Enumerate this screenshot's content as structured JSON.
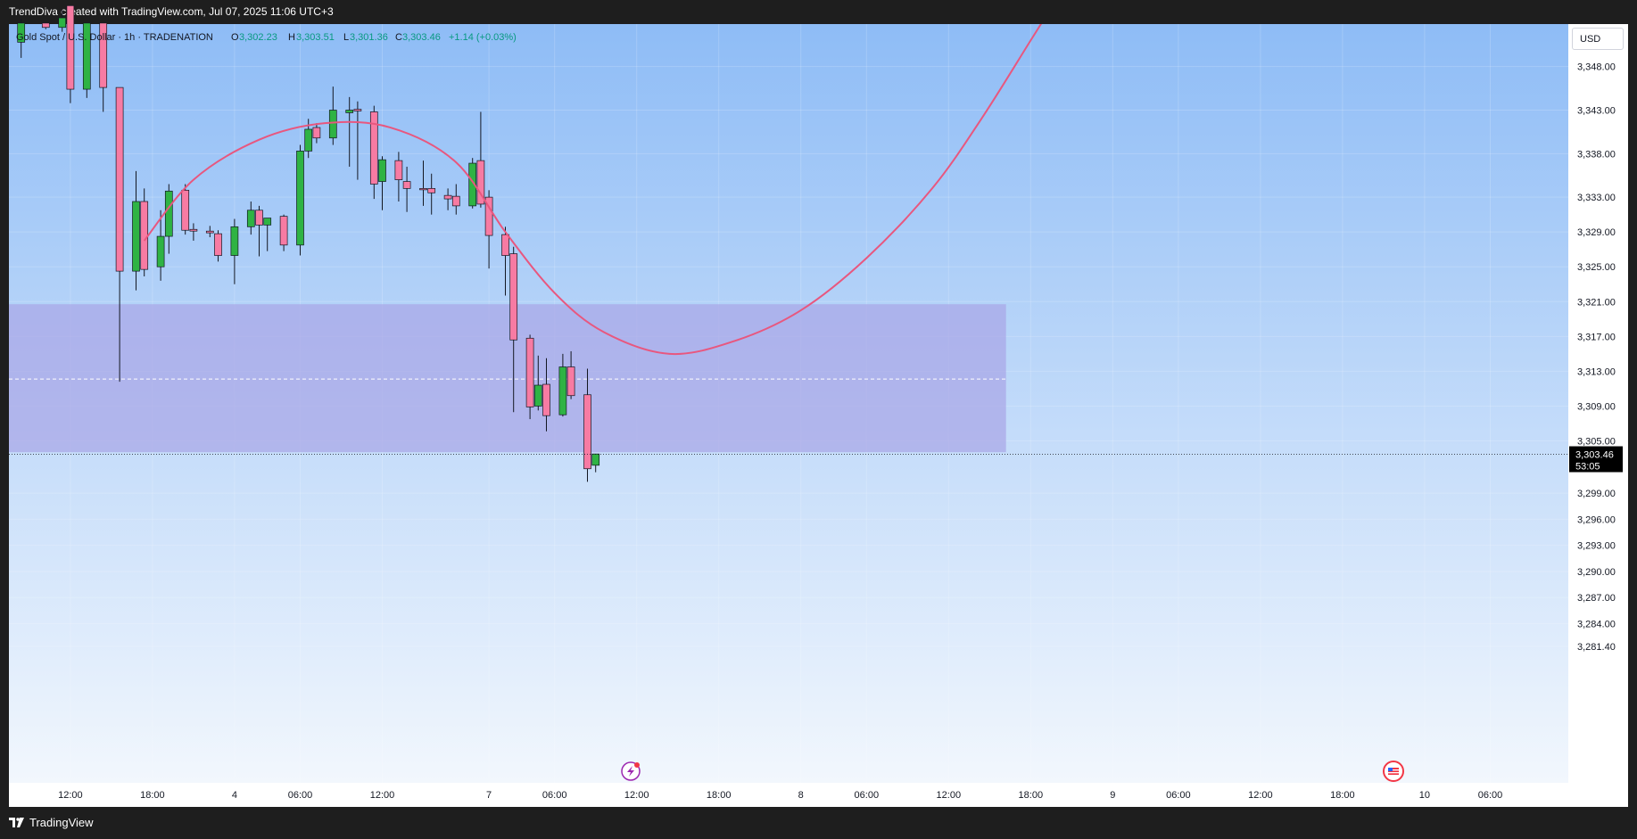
{
  "header": {
    "credit": "TrendDiva created with TradingView.com, Jul 07, 2025 11:06 UTC+3"
  },
  "footer": {
    "brand": "TradingView"
  },
  "currency_button": "USD",
  "legend": {
    "symbol": "Gold Spot / U.S. Dollar · 1h · TRADENATION",
    "o_label": "O",
    "o_value": "3,302.23",
    "h_label": "H",
    "h_value": "3,303.51",
    "l_label": "L",
    "l_value": "3,301.36",
    "c_label": "C",
    "c_value": "3,303.46",
    "change": "+1.14 (+0.03%)"
  },
  "price_tag": {
    "price": "3,303.46",
    "countdown": "53:05"
  },
  "colors": {
    "up": "#2fb344",
    "down": "#f77ba3",
    "curve": "#e8577f",
    "zone": "#a9a6e6",
    "bg_top": "#8ebcf6",
    "bg_bottom": "#f2f7fd"
  },
  "icons": {
    "bolt": "lightning-bolt-icon",
    "flag": "us-flag-icon",
    "logo": "tradingview-logo-icon"
  },
  "chart_data": {
    "type": "candlestick",
    "title": "",
    "interval": "1h",
    "y_axis": {
      "ylim": [
        3279.0,
        3355.0
      ],
      "ticks": [
        3348,
        3343,
        3338,
        3333,
        3329,
        3325,
        3321,
        3317,
        3313,
        3309,
        3305,
        3299,
        3296,
        3293,
        3290,
        3287,
        3284,
        3281.4
      ],
      "tick_labels": [
        "3,348.00",
        "3,343.00",
        "3,338.00",
        "3,333.00",
        "3,329.00",
        "3,325.00",
        "3,321.00",
        "3,317.00",
        "3,313.00",
        "3,309.00",
        "3,305.00",
        "3,299.00",
        "3,296.00",
        "3,293.00",
        "3,290.00",
        "3,287.00",
        "3,284.00",
        "3,281.40"
      ]
    },
    "x_axis": {
      "bars_visible": 190,
      "ticks": [
        {
          "bar": 7,
          "label": "12:00"
        },
        {
          "bar": 17,
          "label": "18:00"
        },
        {
          "bar": 27,
          "label": "4"
        },
        {
          "bar": 35,
          "label": "06:00"
        },
        {
          "bar": 45,
          "label": "12:00"
        },
        {
          "bar": 58,
          "label": "7"
        },
        {
          "bar": 66,
          "label": "06:00"
        },
        {
          "bar": 76,
          "label": "12:00"
        },
        {
          "bar": 86,
          "label": "18:00"
        },
        {
          "bar": 96,
          "label": "8"
        },
        {
          "bar": 104,
          "label": "06:00"
        },
        {
          "bar": 114,
          "label": "12:00"
        },
        {
          "bar": 124,
          "label": "18:00"
        },
        {
          "bar": 134,
          "label": "9"
        },
        {
          "bar": 142,
          "label": "06:00"
        },
        {
          "bar": 152,
          "label": "12:00"
        },
        {
          "bar": 162,
          "label": "18:00"
        },
        {
          "bar": 172,
          "label": "10"
        },
        {
          "bar": 180,
          "label": "06:00"
        }
      ]
    },
    "candles": [
      {
        "bar": 1,
        "o": 3350.8,
        "h": 3353.5,
        "l": 3349.0,
        "c": 3353.0
      },
      {
        "bar": 4,
        "o": 3353.0,
        "h": 3353.0,
        "l": 3352.3,
        "c": 3352.5
      },
      {
        "bar": 6,
        "o": 3352.5,
        "h": 3354.5,
        "l": 3352.0,
        "c": 3353.6
      },
      {
        "bar": 7,
        "o": 3355.0,
        "h": 3355.0,
        "l": 3343.8,
        "c": 3345.4
      },
      {
        "bar": 9,
        "o": 3345.4,
        "h": 3353.0,
        "l": 3344.4,
        "c": 3353.0
      },
      {
        "bar": 11,
        "o": 3353.0,
        "h": 3353.0,
        "l": 3342.8,
        "c": 3345.6
      },
      {
        "bar": 13,
        "o": 3345.6,
        "h": 3345.6,
        "l": 3311.8,
        "c": 3324.5
      },
      {
        "bar": 15,
        "o": 3324.5,
        "h": 3336.0,
        "l": 3322.3,
        "c": 3332.5
      },
      {
        "bar": 16,
        "o": 3332.5,
        "h": 3334.0,
        "l": 3323.9,
        "c": 3324.7
      },
      {
        "bar": 18,
        "o": 3325.0,
        "h": 3331.5,
        "l": 3323.4,
        "c": 3328.5
      },
      {
        "bar": 19,
        "o": 3328.5,
        "h": 3334.5,
        "l": 3326.5,
        "c": 3333.7
      },
      {
        "bar": 21,
        "o": 3333.8,
        "h": 3334.5,
        "l": 3328.7,
        "c": 3329.2
      },
      {
        "bar": 22,
        "o": 3329.3,
        "h": 3330.0,
        "l": 3328.0,
        "c": 3329.1
      },
      {
        "bar": 24,
        "o": 3329.1,
        "h": 3329.7,
        "l": 3328.4,
        "c": 3328.9
      },
      {
        "bar": 25,
        "o": 3328.8,
        "h": 3329.2,
        "l": 3325.6,
        "c": 3326.3
      },
      {
        "bar": 27,
        "o": 3326.3,
        "h": 3330.5,
        "l": 3323.0,
        "c": 3329.6
      },
      {
        "bar": 29,
        "o": 3329.6,
        "h": 3332.5,
        "l": 3328.7,
        "c": 3331.5
      },
      {
        "bar": 30,
        "o": 3331.5,
        "h": 3332.0,
        "l": 3326.2,
        "c": 3329.8
      },
      {
        "bar": 31,
        "o": 3329.8,
        "h": 3330.5,
        "l": 3326.8,
        "c": 3330.6
      },
      {
        "bar": 33,
        "o": 3330.8,
        "h": 3331.0,
        "l": 3326.8,
        "c": 3327.5
      },
      {
        "bar": 35,
        "o": 3327.5,
        "h": 3339.0,
        "l": 3326.3,
        "c": 3338.3
      },
      {
        "bar": 36,
        "o": 3338.3,
        "h": 3342.0,
        "l": 3337.5,
        "c": 3340.8
      },
      {
        "bar": 37,
        "o": 3341.0,
        "h": 3341.5,
        "l": 3339.2,
        "c": 3339.8
      },
      {
        "bar": 39,
        "o": 3339.8,
        "h": 3345.7,
        "l": 3339.0,
        "c": 3343.0
      },
      {
        "bar": 41,
        "o": 3342.7,
        "h": 3344.5,
        "l": 3336.5,
        "c": 3343.0
      },
      {
        "bar": 42,
        "o": 3343.1,
        "h": 3344.0,
        "l": 3335.0,
        "c": 3342.9
      },
      {
        "bar": 44,
        "o": 3342.8,
        "h": 3343.5,
        "l": 3332.8,
        "c": 3334.5
      },
      {
        "bar": 45,
        "o": 3334.8,
        "h": 3337.7,
        "l": 3331.5,
        "c": 3337.3
      },
      {
        "bar": 47,
        "o": 3337.2,
        "h": 3338.2,
        "l": 3332.5,
        "c": 3335.0
      },
      {
        "bar": 48,
        "o": 3334.8,
        "h": 3336.5,
        "l": 3331.3,
        "c": 3334.0
      },
      {
        "bar": 50,
        "o": 3334.0,
        "h": 3337.2,
        "l": 3332.0,
        "c": 3333.9
      },
      {
        "bar": 51,
        "o": 3334.0,
        "h": 3335.7,
        "l": 3331.0,
        "c": 3333.5
      },
      {
        "bar": 53,
        "o": 3333.2,
        "h": 3334.0,
        "l": 3331.5,
        "c": 3332.8
      },
      {
        "bar": 54,
        "o": 3333.1,
        "h": 3334.5,
        "l": 3331.0,
        "c": 3332.0
      },
      {
        "bar": 56,
        "o": 3332.0,
        "h": 3337.5,
        "l": 3331.7,
        "c": 3336.9
      },
      {
        "bar": 57,
        "o": 3337.2,
        "h": 3342.8,
        "l": 3331.8,
        "c": 3332.2
      },
      {
        "bar": 58,
        "o": 3333.0,
        "h": 3333.8,
        "l": 3324.8,
        "c": 3328.6
      },
      {
        "bar": 60,
        "o": 3328.7,
        "h": 3329.6,
        "l": 3321.7,
        "c": 3326.3
      },
      {
        "bar": 61,
        "o": 3326.5,
        "h": 3327.3,
        "l": 3308.3,
        "c": 3316.6
      },
      {
        "bar": 63,
        "o": 3316.8,
        "h": 3317.2,
        "l": 3307.5,
        "c": 3308.9
      },
      {
        "bar": 64,
        "o": 3309.0,
        "h": 3314.8,
        "l": 3308.5,
        "c": 3311.4
      },
      {
        "bar": 65,
        "o": 3311.5,
        "h": 3314.5,
        "l": 3306.1,
        "c": 3307.9
      },
      {
        "bar": 67,
        "o": 3308.0,
        "h": 3315.0,
        "l": 3307.8,
        "c": 3313.5
      },
      {
        "bar": 68,
        "o": 3313.5,
        "h": 3315.3,
        "l": 3309.8,
        "c": 3310.2
      },
      {
        "bar": 70,
        "o": 3310.3,
        "h": 3313.3,
        "l": 3300.3,
        "c": 3301.8
      },
      {
        "bar": 71,
        "o": 3302.2,
        "h": 3303.5,
        "l": 3301.4,
        "c": 3303.5
      }
    ],
    "projection_curve": {
      "color": "#e8577f",
      "points": [
        {
          "bar": 16,
          "price": 3328.0
        },
        {
          "bar": 22,
          "price": 3335.0
        },
        {
          "bar": 30,
          "price": 3339.6
        },
        {
          "bar": 38,
          "price": 3341.5
        },
        {
          "bar": 46,
          "price": 3341.0
        },
        {
          "bar": 54,
          "price": 3337.0
        },
        {
          "bar": 60,
          "price": 3329.0
        },
        {
          "bar": 66,
          "price": 3322.0
        },
        {
          "bar": 72,
          "price": 3317.5
        },
        {
          "bar": 80,
          "price": 3315.0
        },
        {
          "bar": 88,
          "price": 3316.5
        },
        {
          "bar": 96,
          "price": 3320.0
        },
        {
          "bar": 104,
          "price": 3326.0
        },
        {
          "bar": 112,
          "price": 3334.0
        },
        {
          "bar": 118,
          "price": 3342.0
        },
        {
          "bar": 124,
          "price": 3351.0
        },
        {
          "bar": 127,
          "price": 3355.5
        }
      ]
    },
    "zone": {
      "price_high": 3320.7,
      "price_low": 3303.7,
      "bar_start": 0,
      "bar_end": 121,
      "midline": 3312.1
    },
    "last_price": 3303.46
  }
}
